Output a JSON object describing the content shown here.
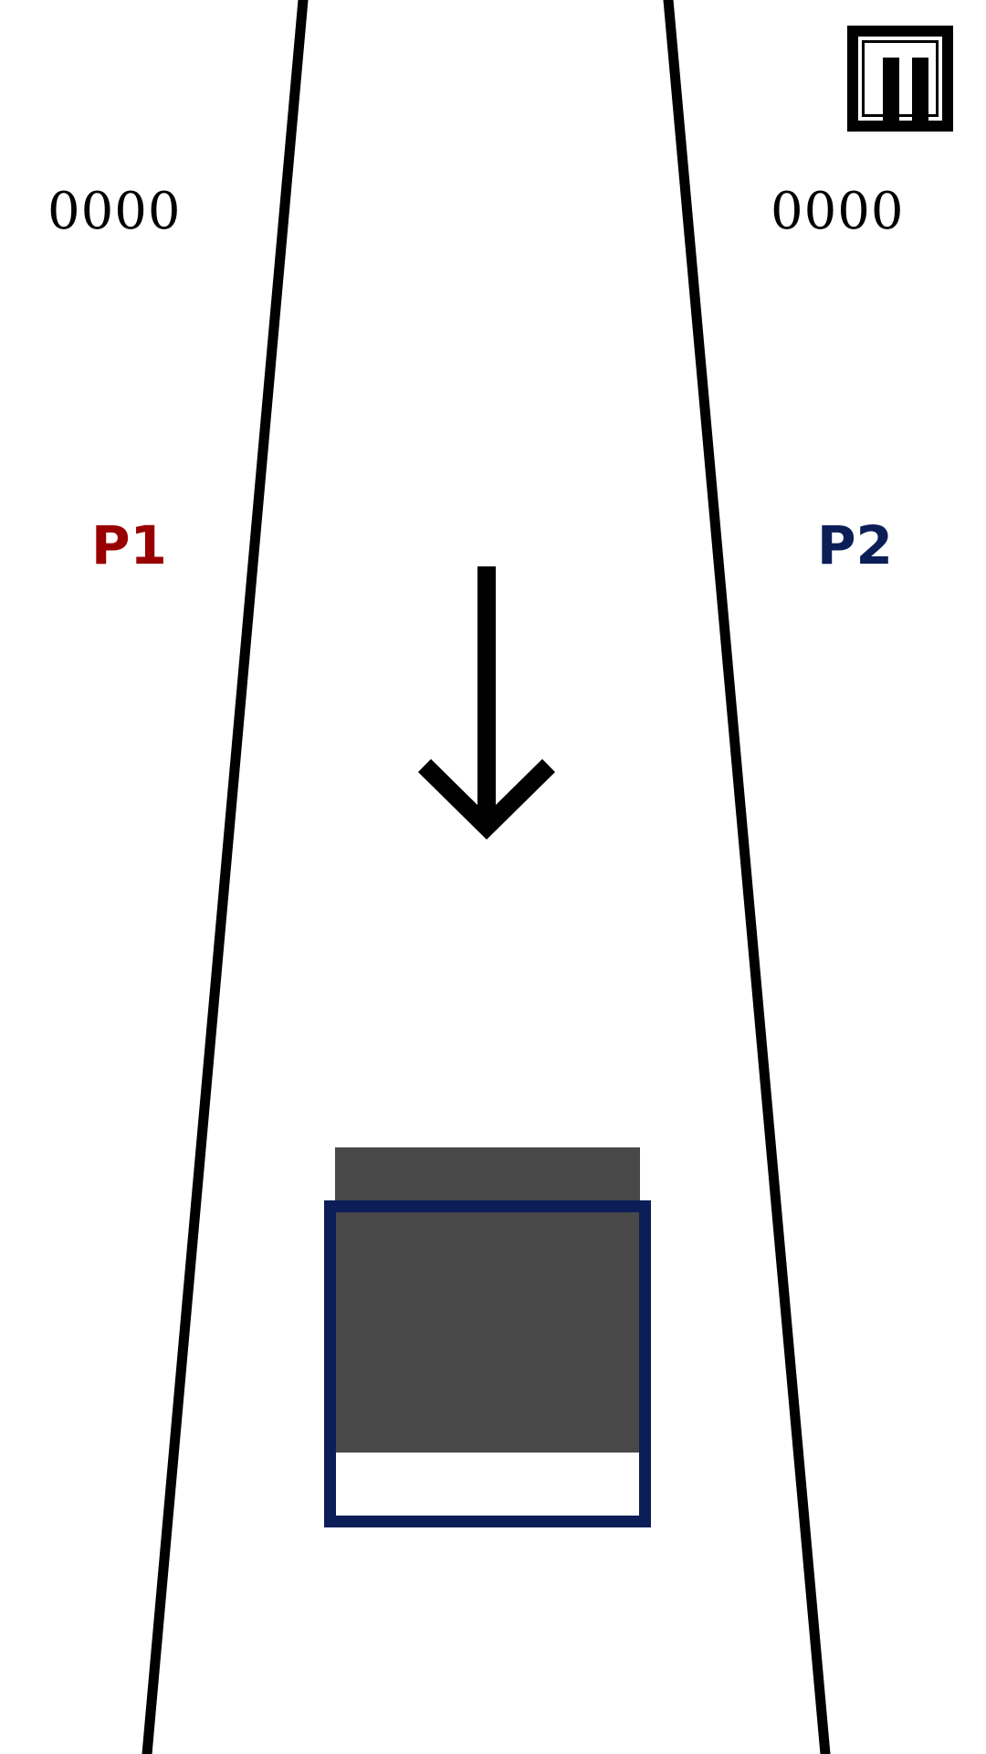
{
  "hud": {
    "p1_score": "0000",
    "p2_score": "0000",
    "p1_label": "P1",
    "p2_label": "P2"
  },
  "icons": {
    "pause": "pause-icon",
    "direction": "arrow-down-icon"
  },
  "colors": {
    "p1": "#990000",
    "p2": "#0c1e57",
    "track_line": "#000000",
    "block": "#484848",
    "target_outline": "#0c1e57"
  }
}
